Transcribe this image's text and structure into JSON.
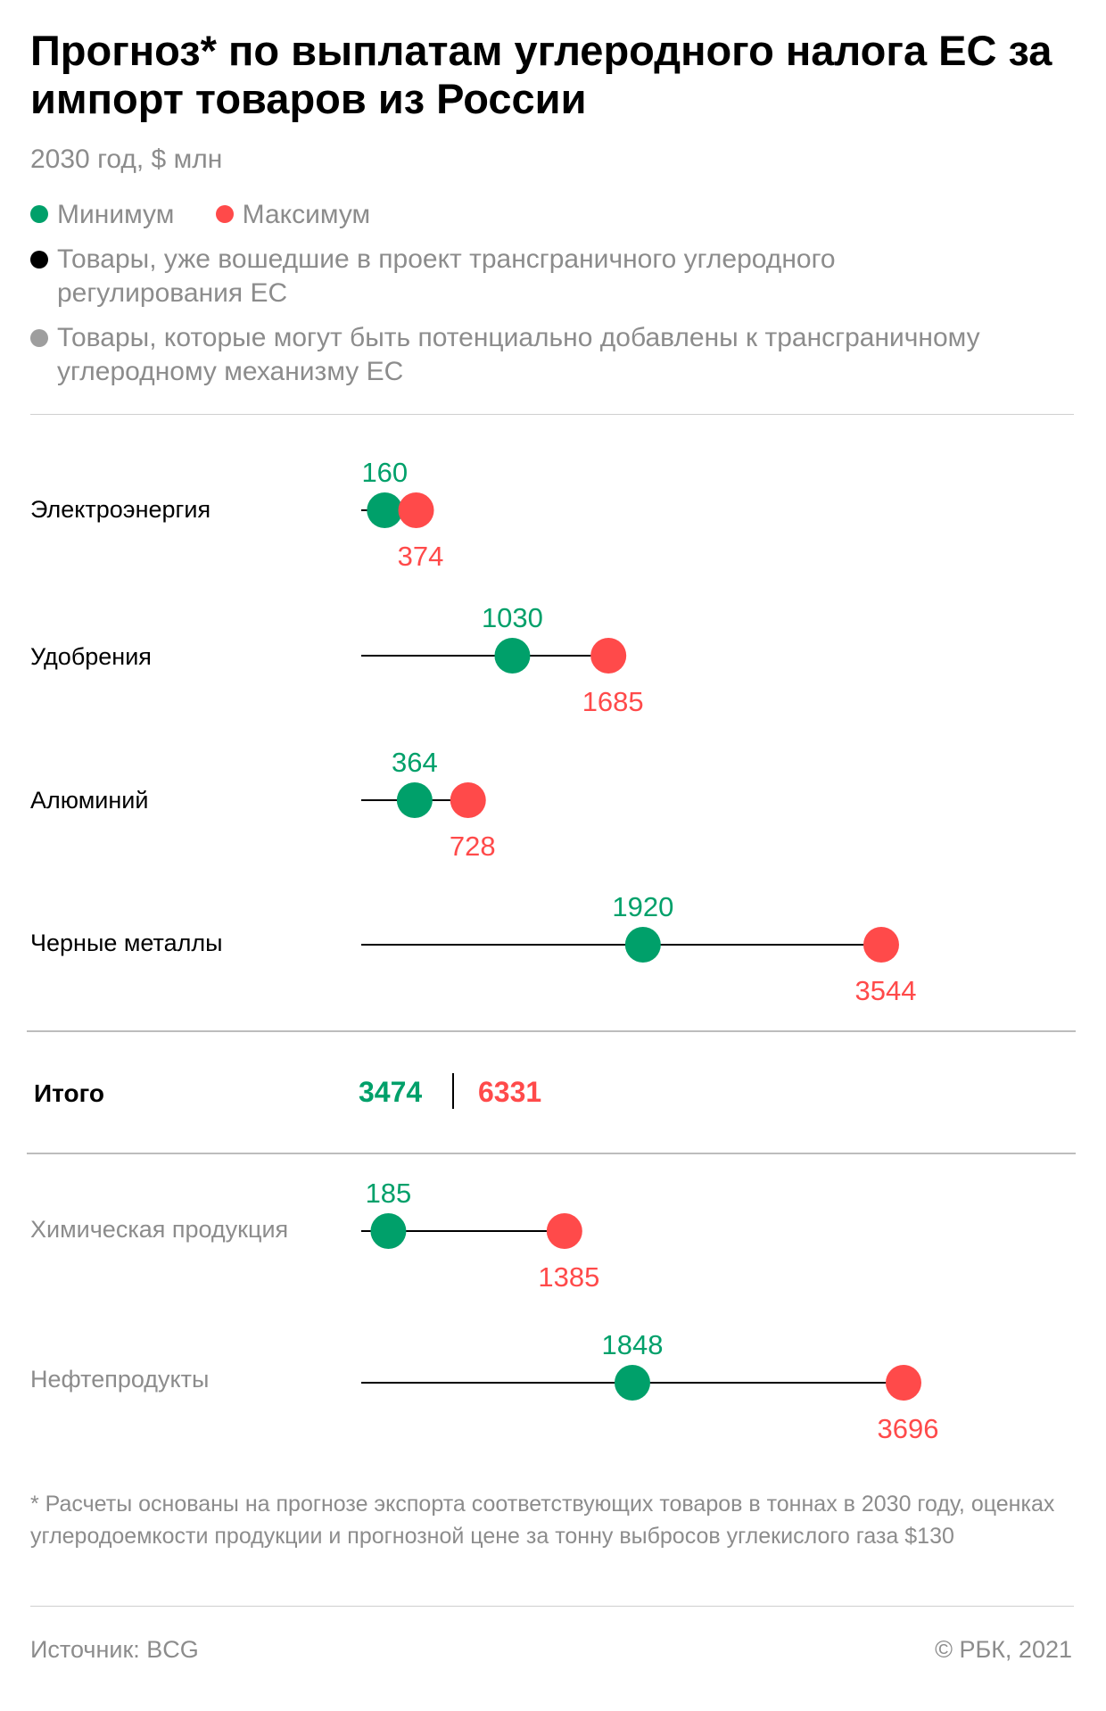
{
  "chart_data": {
    "type": "dumbbell",
    "title": "Прогноз* по выплатам углеродного налога ЕС за импорт товаров из России",
    "subtitle": "2030 год, $ млн",
    "legend": {
      "min_label": "Минимум",
      "max_label": "Максимум",
      "included_label": "Товары, уже вошедшие в проект трансграничного углеродного регулирования ЕС",
      "potential_label": "Товары, которые могут быть потенциально добавлены к трансграничному углеродному механизму ЕС"
    },
    "colors": {
      "min": "#00a06a",
      "max": "#ff4a4a",
      "included": "#000000",
      "potential": "#9e9e9e"
    },
    "xlim": [
      0,
      3800
    ],
    "categories": [
      {
        "label": "Электроэнергия",
        "min": 160,
        "max": 374,
        "group": "included"
      },
      {
        "label": "Удобрения",
        "min": 1030,
        "max": 1685,
        "group": "included"
      },
      {
        "label": "Алюминий",
        "min": 364,
        "max": 728,
        "group": "included"
      },
      {
        "label": "Черные металлы",
        "min": 1920,
        "max": 3544,
        "group": "included"
      }
    ],
    "total": {
      "label": "Итого",
      "min": 3474,
      "max": 6331
    },
    "potential_categories": [
      {
        "label": "Химическая продукция",
        "min": 185,
        "max": 1385,
        "group": "potential"
      },
      {
        "label": "Нефтепродукты",
        "min": 1848,
        "max": 3696,
        "group": "potential"
      }
    ]
  },
  "footnote": "* Расчеты основаны на прогнозе экспорта соответствующих товаров в тоннах в 2030 году, оценках углеродоемкости продукции и прогнозной цене за тонну выбросов углекислого газа $130",
  "source": "Источник: BCG",
  "credit": "© РБК, 2021"
}
